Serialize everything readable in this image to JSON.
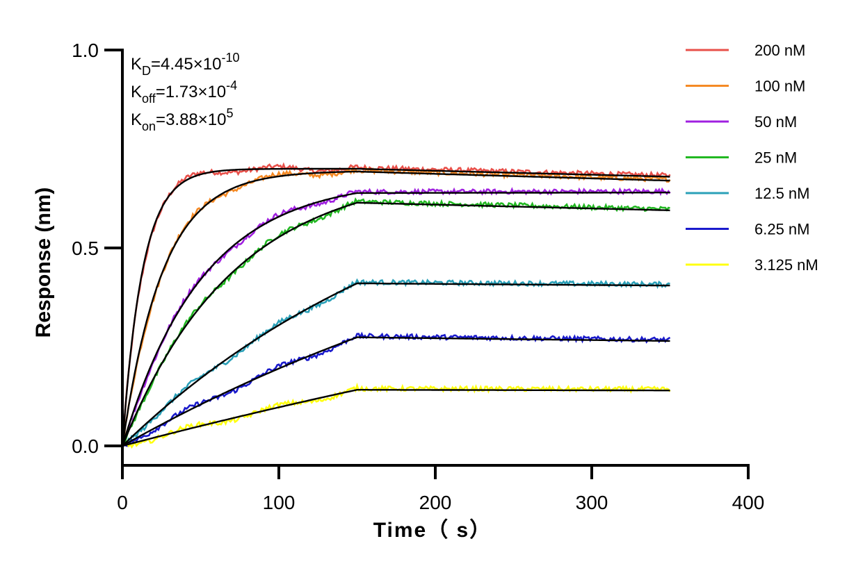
{
  "chart_data": {
    "type": "line",
    "title": "",
    "xlabel": "Time（ s）",
    "ylabel": "Response (nm)",
    "xlim": [
      0,
      400
    ],
    "ylim": [
      -0.05,
      1.0
    ],
    "xticks": [
      0,
      100,
      200,
      300,
      400
    ],
    "xtick_labels": [
      "0",
      "100",
      "200",
      "300",
      "400"
    ],
    "yticks": [
      0.0,
      0.5,
      1.0
    ],
    "ytick_labels": [
      "0.0",
      "0.5",
      "1.0"
    ],
    "grid": false,
    "legend_position": "top-right",
    "association_end": 150,
    "time_end": 350,
    "parameters": [
      {
        "symbol": "K",
        "sub": "D",
        "mantissa": "4.45",
        "exp": "-10"
      },
      {
        "symbol": "K",
        "sub": "off",
        "mantissa": "1.73",
        "exp": "-4"
      },
      {
        "symbol": "K",
        "sub": "on",
        "mantissa": "3.88",
        "exp": "5"
      }
    ],
    "fit_color": "#000000",
    "series": [
      {
        "name": "200 nM",
        "color": "#e8504a",
        "plateau": 0.7,
        "k_obs": 0.078,
        "end": 0.68
      },
      {
        "name": "100 nM",
        "color": "#f58a25",
        "plateau": 0.695,
        "k_obs": 0.039,
        "end": 0.67
      },
      {
        "name": "50 nM",
        "color": "#a020e0",
        "plateau": 0.675,
        "k_obs": 0.0195,
        "end": 0.64
      },
      {
        "name": "25 nM",
        "color": "#22b822",
        "plateau": 0.7,
        "k_obs": 0.014,
        "end": 0.595
      },
      {
        "name": "12.5 nM",
        "color": "#2aa0b8",
        "plateau": 0.8,
        "k_obs": 0.0048,
        "end": 0.405
      },
      {
        "name": "6.25 nM",
        "color": "#1a1acc",
        "plateau": 0.8,
        "k_obs": 0.0028,
        "end": 0.265
      },
      {
        "name": "3.125 nM",
        "color": "#ffff10",
        "plateau": 0.8,
        "k_obs": 0.0013,
        "end": 0.14
      }
    ]
  }
}
